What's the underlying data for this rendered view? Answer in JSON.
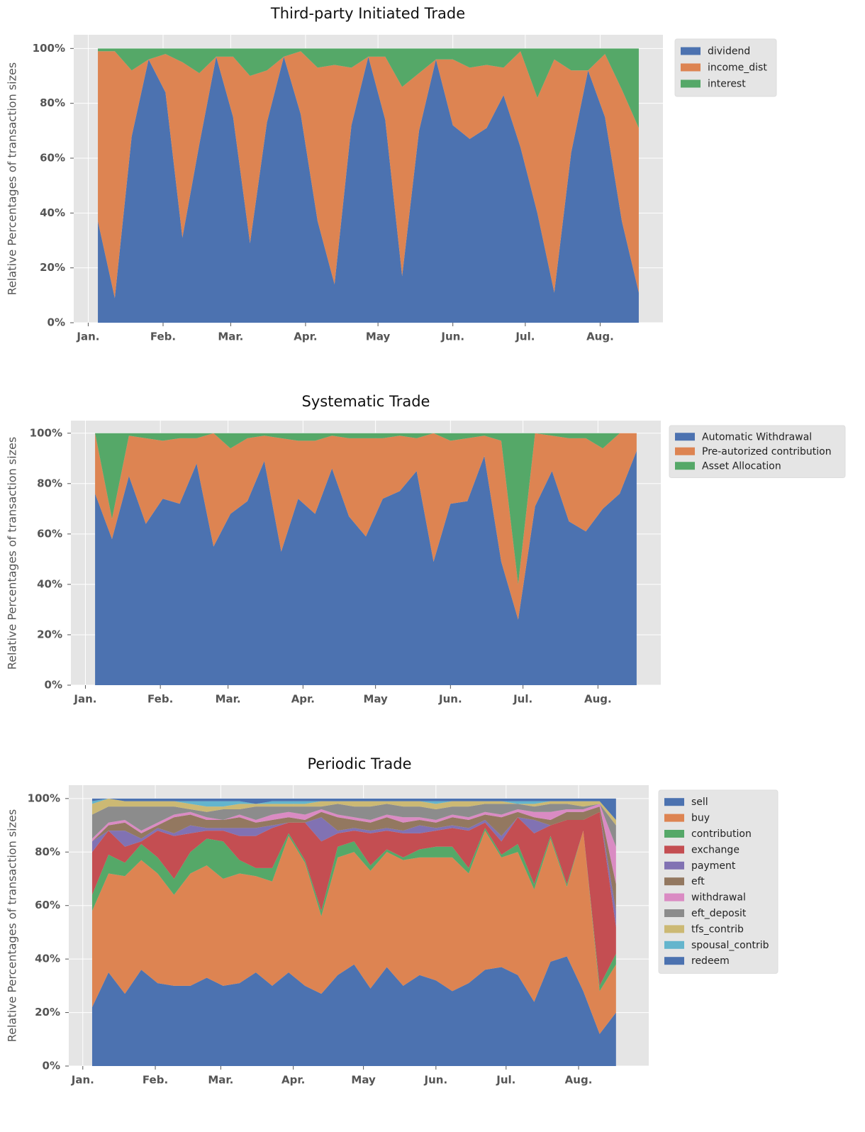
{
  "chart_data": [
    {
      "type": "area",
      "stacked": true,
      "title": "Third-party Initiated Trade",
      "ylabel": "Relative Percentages of transaction sizes",
      "x": [
        5,
        12,
        19,
        26,
        33,
        40,
        47,
        54,
        61,
        68,
        75,
        82,
        89,
        96,
        103,
        110,
        117,
        124,
        131,
        138,
        145,
        152,
        159,
        166,
        173,
        180,
        187,
        194,
        201,
        208,
        215,
        222,
        229
      ],
      "xlim": [
        -5,
        239
      ],
      "xticks": [
        {
          "value": 1,
          "label": "Jan."
        },
        {
          "value": 32,
          "label": "Feb."
        },
        {
          "value": 60,
          "label": "Mar."
        },
        {
          "value": 91,
          "label": "Apr."
        },
        {
          "value": 121,
          "label": "May"
        },
        {
          "value": 152,
          "label": "Jun."
        },
        {
          "value": 182,
          "label": "Jul."
        },
        {
          "value": 213,
          "label": "Aug."
        }
      ],
      "ylim": [
        0,
        105
      ],
      "yticks": [
        {
          "value": 0,
          "label": "0%"
        },
        {
          "value": 20,
          "label": "20%"
        },
        {
          "value": 40,
          "label": "40%"
        },
        {
          "value": 60,
          "label": "60%"
        },
        {
          "value": 80,
          "label": "80%"
        },
        {
          "value": 100,
          "label": "100%"
        }
      ],
      "grid": true,
      "legend": "outside right",
      "series": [
        {
          "name": "dividend",
          "color": "#4c72b0",
          "values": [
            37,
            9,
            68,
            96,
            84,
            31,
            65,
            97,
            75,
            29,
            73,
            97,
            76,
            37,
            14,
            72,
            97,
            74,
            17,
            70,
            96,
            72,
            67,
            71,
            83,
            64,
            40,
            11,
            62,
            92,
            75,
            37,
            11
          ]
        },
        {
          "name": "income_dist",
          "color": "#dd8452",
          "values": [
            62,
            90,
            24,
            0,
            14,
            64,
            26,
            0,
            22,
            61,
            19,
            0,
            23,
            56,
            80,
            21,
            0,
            23,
            69,
            21,
            0,
            24,
            26,
            23,
            10,
            35,
            42,
            85,
            30,
            0,
            23,
            48,
            60
          ]
        },
        {
          "name": "interest",
          "color": "#55a868",
          "values": [
            1,
            1,
            8,
            4,
            2,
            5,
            9,
            3,
            3,
            10,
            8,
            3,
            1,
            7,
            6,
            7,
            3,
            3,
            14,
            9,
            4,
            4,
            7,
            6,
            7,
            1,
            18,
            4,
            8,
            8,
            2,
            15,
            29
          ]
        }
      ]
    },
    {
      "type": "area",
      "stacked": true,
      "title": "Systematic Trade",
      "ylabel": "Relative Percentages of transaction sizes",
      "x": [
        5,
        12,
        19,
        26,
        33,
        40,
        47,
        54,
        61,
        68,
        75,
        82,
        89,
        96,
        103,
        110,
        117,
        124,
        131,
        138,
        145,
        152,
        159,
        166,
        173,
        180,
        187,
        194,
        201,
        208,
        215,
        222,
        229
      ],
      "xlim": [
        -5,
        239
      ],
      "xticks": [
        {
          "value": 1,
          "label": "Jan."
        },
        {
          "value": 32,
          "label": "Feb."
        },
        {
          "value": 60,
          "label": "Mar."
        },
        {
          "value": 91,
          "label": "Apr."
        },
        {
          "value": 121,
          "label": "May"
        },
        {
          "value": 152,
          "label": "Jun."
        },
        {
          "value": 182,
          "label": "Jul."
        },
        {
          "value": 213,
          "label": "Aug."
        }
      ],
      "ylim": [
        0,
        105
      ],
      "yticks": [
        {
          "value": 0,
          "label": "0%"
        },
        {
          "value": 20,
          "label": "20%"
        },
        {
          "value": 40,
          "label": "40%"
        },
        {
          "value": 60,
          "label": "60%"
        },
        {
          "value": 80,
          "label": "80%"
        },
        {
          "value": 100,
          "label": "100%"
        }
      ],
      "grid": true,
      "legend": "outside right",
      "series": [
        {
          "name": "Automatic Withdrawal",
          "color": "#4c72b0",
          "values": [
            76,
            58,
            83,
            64,
            74,
            72,
            88,
            55,
            68,
            73,
            89,
            53,
            74,
            68,
            86,
            67,
            59,
            74,
            77,
            85,
            49,
            72,
            73,
            91,
            49,
            26,
            71,
            85,
            65,
            61,
            70,
            76,
            93
          ]
        },
        {
          "name": "Pre-autorized contribution",
          "color": "#dd8452",
          "values": [
            24,
            8,
            16,
            34,
            23,
            26,
            10,
            45,
            26,
            25,
            10,
            45,
            23,
            29,
            13,
            31,
            39,
            24,
            22,
            13,
            51,
            25,
            25,
            8,
            48,
            14,
            29,
            14,
            33,
            37,
            24,
            24,
            7
          ]
        },
        {
          "name": "Asset Allocation",
          "color": "#55a868",
          "values": [
            0,
            34,
            1,
            2,
            3,
            2,
            2,
            0,
            6,
            2,
            1,
            2,
            3,
            3,
            1,
            2,
            2,
            2,
            1,
            2,
            0,
            3,
            2,
            1,
            3,
            60,
            0,
            1,
            2,
            2,
            6,
            0,
            0
          ]
        }
      ]
    },
    {
      "type": "area",
      "stacked": true,
      "title": "Periodic Trade",
      "ylabel": "Relative Percentages of transaction sizes",
      "x": [
        5,
        12,
        19,
        26,
        33,
        40,
        47,
        54,
        61,
        68,
        75,
        82,
        89,
        96,
        103,
        110,
        117,
        124,
        131,
        138,
        145,
        152,
        159,
        166,
        173,
        180,
        187,
        194,
        201,
        208,
        215,
        222,
        229
      ],
      "xlim": [
        -5,
        243
      ],
      "xticks": [
        {
          "value": 1,
          "label": "Jan."
        },
        {
          "value": 32,
          "label": "Feb."
        },
        {
          "value": 60,
          "label": "Mar."
        },
        {
          "value": 91,
          "label": "Apr."
        },
        {
          "value": 121,
          "label": "May"
        },
        {
          "value": 152,
          "label": "Jun."
        },
        {
          "value": 182,
          "label": "Jul."
        },
        {
          "value": 213,
          "label": "Aug."
        }
      ],
      "ylim": [
        0,
        105
      ],
      "yticks": [
        {
          "value": 0,
          "label": "0%"
        },
        {
          "value": 20,
          "label": "20%"
        },
        {
          "value": 40,
          "label": "40%"
        },
        {
          "value": 60,
          "label": "60%"
        },
        {
          "value": 80,
          "label": "80%"
        },
        {
          "value": 100,
          "label": "100%"
        }
      ],
      "grid": true,
      "legend": "outside right",
      "series": [
        {
          "name": "sell",
          "color": "#4c72b0",
          "values": [
            22,
            35,
            27,
            36,
            31,
            30,
            30,
            33,
            30,
            31,
            35,
            30,
            35,
            30,
            27,
            34,
            38,
            29,
            37,
            30,
            34,
            32,
            28,
            31,
            36,
            37,
            34,
            24,
            39,
            41,
            28,
            12,
            20
          ]
        },
        {
          "name": "buy",
          "color": "#dd8452",
          "values": [
            36,
            37,
            44,
            41,
            41,
            34,
            42,
            42,
            40,
            41,
            36,
            39,
            51,
            46,
            29,
            44,
            42,
            44,
            43,
            47,
            44,
            46,
            50,
            41,
            52,
            41,
            46,
            42,
            46,
            26,
            60,
            16,
            18
          ]
        },
        {
          "name": "contribution",
          "color": "#55a868",
          "values": [
            6,
            7,
            5,
            6,
            6,
            6,
            8,
            10,
            14,
            5,
            3,
            5,
            1,
            1,
            2,
            4,
            4,
            2,
            1,
            1,
            3,
            4,
            4,
            2,
            1,
            1,
            3,
            2,
            1,
            1,
            0,
            2,
            4
          ]
        },
        {
          "name": "exchange",
          "color": "#c44e52",
          "values": [
            16,
            9,
            6,
            1,
            10,
            16,
            7,
            3,
            4,
            9,
            12,
            15,
            4,
            14,
            26,
            5,
            4,
            12,
            7,
            9,
            6,
            6,
            7,
            14,
            2,
            5,
            10,
            19,
            4,
            24,
            4,
            65,
            10
          ]
        },
        {
          "name": "payment",
          "color": "#8172b3",
          "values": [
            4,
            0,
            6,
            1,
            1,
            1,
            3,
            1,
            1,
            3,
            3,
            1,
            0,
            0,
            9,
            1,
            1,
            1,
            1,
            1,
            3,
            1,
            1,
            1,
            1,
            2,
            0,
            5,
            0,
            0,
            0,
            0,
            6
          ]
        },
        {
          "name": "eft",
          "color": "#937860",
          "values": [
            0,
            2,
            3,
            2,
            1,
            6,
            4,
            3,
            3,
            4,
            2,
            2,
            2,
            1,
            2,
            5,
            3,
            3,
            4,
            3,
            2,
            2,
            3,
            3,
            2,
            7,
            2,
            1,
            2,
            3,
            3,
            2,
            10
          ]
        },
        {
          "name": "withdrawal",
          "color": "#da8bc3",
          "values": [
            1,
            1,
            1,
            1,
            1,
            1,
            1,
            1,
            0,
            1,
            1,
            2,
            2,
            2,
            1,
            1,
            1,
            1,
            1,
            2,
            1,
            1,
            1,
            1,
            1,
            1,
            1,
            2,
            3,
            1,
            1,
            1,
            14
          ]
        },
        {
          "name": "eft_deposit",
          "color": "#8c8c8c",
          "values": [
            9,
            6,
            5,
            9,
            6,
            3,
            1,
            2,
            4,
            2,
            5,
            3,
            2,
            3,
            1,
            4,
            4,
            5,
            4,
            4,
            4,
            4,
            3,
            4,
            3,
            4,
            2,
            2,
            3,
            2,
            1,
            0,
            8
          ]
        },
        {
          "name": "tfs_contrib",
          "color": "#ccb974",
          "values": [
            4,
            3,
            2,
            2,
            2,
            2,
            2,
            2,
            1,
            2,
            1,
            1,
            1,
            1,
            2,
            1,
            2,
            2,
            1,
            2,
            2,
            2,
            2,
            2,
            1,
            1,
            0,
            1,
            1,
            1,
            2,
            1,
            2
          ]
        },
        {
          "name": "spousal_contrib",
          "color": "#64b5cd",
          "values": [
            1,
            0,
            0,
            0,
            0,
            0,
            1,
            2,
            2,
            1,
            0,
            1,
            1,
            1,
            0,
            0,
            0,
            0,
            0,
            0,
            0,
            1,
            0,
            0,
            0,
            0,
            1,
            1,
            0,
            0,
            0,
            0,
            0
          ]
        },
        {
          "name": "redeem",
          "color": "#4c72b0",
          "values": [
            1,
            0,
            1,
            1,
            1,
            1,
            1,
            1,
            1,
            1,
            2,
            1,
            1,
            1,
            1,
            1,
            1,
            1,
            1,
            1,
            1,
            1,
            1,
            1,
            1,
            1,
            1,
            1,
            1,
            1,
            1,
            1,
            8
          ]
        }
      ]
    }
  ]
}
